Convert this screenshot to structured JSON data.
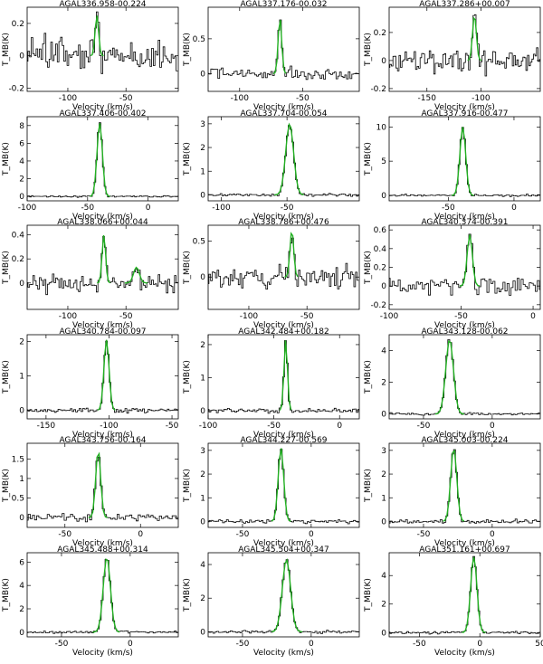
{
  "figure": {
    "xlabel": "Velocity (km/s)",
    "ylabel": "T_MB(K)",
    "colors": {
      "data": "#000000",
      "fit": "#22b022",
      "axes": "#000000"
    }
  },
  "chart_data": [
    {
      "type": "line",
      "title": "AGAL336.958-00.224",
      "xlim": [
        -135,
        -5
      ],
      "ylim": [
        -0.22,
        0.3
      ],
      "xticks": [
        -100,
        -50
      ],
      "yticks": [
        -0.2,
        0,
        0.2
      ],
      "peak_velocity": -75,
      "peak": 0.25,
      "width": 1.5,
      "noise": 0.08,
      "seed": 11
    },
    {
      "type": "line",
      "title": "AGAL337.176-00.032",
      "xlim": [
        -125,
        -5
      ],
      "ylim": [
        -0.25,
        0.95
      ],
      "xticks": [
        -100,
        -50
      ],
      "yticks": [
        0,
        0.5
      ],
      "peak_velocity": -68,
      "peak": 0.8,
      "width": 1.4,
      "noise": 0.07,
      "seed": 12
    },
    {
      "type": "line",
      "title": "AGAL337.286+00.007",
      "xlim": [
        -185,
        -45
      ],
      "ylim": [
        -0.22,
        0.38
      ],
      "xticks": [
        -150,
        -100
      ],
      "yticks": [
        -0.2,
        0,
        0.2
      ],
      "peak_velocity": -106,
      "peak": 0.32,
      "width": 1.8,
      "noise": 0.07,
      "seed": 13
    },
    {
      "type": "line",
      "title": "AGAL337.406-00.402",
      "xlim": [
        -100,
        25
      ],
      "ylim": [
        -0.5,
        9
      ],
      "xticks": [
        -100,
        -50,
        0
      ],
      "yticks": [
        0,
        2,
        4,
        6,
        8
      ],
      "peak_velocity": -40,
      "peak": 8.3,
      "width": 2.2,
      "noise": 0.07,
      "seed": 14
    },
    {
      "type": "line",
      "title": "AGAL337.704-00.054",
      "xlim": [
        -110,
        5
      ],
      "ylim": [
        -0.25,
        3.3
      ],
      "xticks": [
        -100,
        -50
      ],
      "yticks": [
        0,
        1,
        2,
        3
      ],
      "peak_velocity": -48,
      "peak": 3.0,
      "width": 3.0,
      "noise": 0.05,
      "seed": 15
    },
    {
      "type": "line",
      "title": "AGAL337.916-00.477",
      "xlim": [
        -95,
        20
      ],
      "ylim": [
        -0.8,
        11.5
      ],
      "xticks": [
        -50,
        0
      ],
      "yticks": [
        0,
        5,
        10
      ],
      "peak_velocity": -39,
      "peak": 10.0,
      "width": 2.2,
      "noise": 0.12,
      "seed": 16
    },
    {
      "type": "line",
      "title": "AGAL338.066+00.044",
      "xlim": [
        -135,
        -5
      ],
      "ylim": [
        -0.22,
        0.48
      ],
      "xticks": [
        -100,
        -50
      ],
      "yticks": [
        0,
        0.2,
        0.4
      ],
      "peak_velocity": -69,
      "peak": 0.4,
      "width": 1.5,
      "noise": 0.06,
      "seed": 17,
      "peak2_velocity": -41,
      "peak2": 0.13,
      "width2": 2.5
    },
    {
      "type": "line",
      "title": "AGAL338.786+00.476",
      "xlim": [
        -135,
        -5
      ],
      "ylim": [
        -0.45,
        0.72
      ],
      "xticks": [
        -100,
        -50
      ],
      "yticks": [
        0,
        0.5
      ],
      "peak_velocity": -63,
      "peak": 0.65,
      "width": 1.6,
      "noise": 0.12,
      "seed": 18
    },
    {
      "type": "line",
      "title": "AGAL340.374-00.391",
      "xlim": [
        -100,
        5
      ],
      "ylim": [
        -0.25,
        0.65
      ],
      "xticks": [
        -100,
        -50,
        0
      ],
      "yticks": [
        -0.2,
        0,
        0.2,
        0.4,
        0.6
      ],
      "peak_velocity": -44,
      "peak": 0.55,
      "width": 1.8,
      "noise": 0.08,
      "seed": 19
    },
    {
      "type": "line",
      "title": "AGAL340.784-00.097",
      "xlim": [
        -165,
        -45
      ],
      "ylim": [
        -0.25,
        2.2
      ],
      "xticks": [
        -150,
        -100,
        -50
      ],
      "yticks": [
        0,
        1,
        2
      ],
      "peak_velocity": -102,
      "peak": 2.05,
      "width": 2.0,
      "noise": 0.05,
      "seed": 20
    },
    {
      "type": "line",
      "title": "AGAL342.484+00.182",
      "xlim": [
        -100,
        15
      ],
      "ylim": [
        -0.25,
        2.3
      ],
      "xticks": [
        -100,
        -50,
        0
      ],
      "yticks": [
        0,
        1,
        2
      ],
      "peak_velocity": -41,
      "peak": 2.15,
      "width": 1.3,
      "noise": 0.05,
      "seed": 21
    },
    {
      "type": "line",
      "title": "AGAL343.128-00.062",
      "xlim": [
        -75,
        35
      ],
      "ylim": [
        -0.3,
        5.0
      ],
      "xticks": [
        -50,
        0
      ],
      "yticks": [
        0,
        2,
        4
      ],
      "peak_velocity": -31,
      "peak": 4.7,
      "width": 2.8,
      "noise": 0.06,
      "seed": 22
    },
    {
      "type": "line",
      "title": "AGAL343.756-00.164",
      "xlim": [
        -75,
        25
      ],
      "ylim": [
        -0.25,
        1.9
      ],
      "xticks": [
        -50,
        0
      ],
      "yticks": [
        0,
        0.5,
        1.0,
        1.5
      ],
      "peak_velocity": -28,
      "peak": 1.75,
      "width": 1.6,
      "noise": 0.08,
      "seed": 23
    },
    {
      "type": "line",
      "title": "AGAL344.227-00.569",
      "xlim": [
        -75,
        35
      ],
      "ylim": [
        -0.25,
        3.3
      ],
      "xticks": [
        -50,
        0
      ],
      "yticks": [
        0,
        1,
        2,
        3
      ],
      "peak_velocity": -22,
      "peak": 3.1,
      "width": 2.0,
      "noise": 0.06,
      "seed": 24
    },
    {
      "type": "line",
      "title": "AGAL345.003-00.224",
      "xlim": [
        -75,
        35
      ],
      "ylim": [
        -0.25,
        3.3
      ],
      "xticks": [
        -50,
        0
      ],
      "yticks": [
        0,
        1,
        2,
        3
      ],
      "peak_velocity": -28,
      "peak": 3.1,
      "width": 2.2,
      "noise": 0.06,
      "seed": 25
    },
    {
      "type": "line",
      "title": "AGAL345.488+00.314",
      "xlim": [
        -75,
        35
      ],
      "ylim": [
        -0.4,
        6.8
      ],
      "xticks": [
        -50,
        0
      ],
      "yticks": [
        0,
        2,
        4,
        6
      ],
      "peak_velocity": -17,
      "peak": 6.4,
      "width": 2.6,
      "noise": 0.07,
      "seed": 26
    },
    {
      "type": "line",
      "title": "AGAL345.504+00.347",
      "xlim": [
        -75,
        35
      ],
      "ylim": [
        -0.3,
        4.7
      ],
      "xticks": [
        -50,
        0
      ],
      "yticks": [
        0,
        2,
        4
      ],
      "peak_velocity": -18,
      "peak": 4.3,
      "width": 3.0,
      "noise": 0.07,
      "seed": 27
    },
    {
      "type": "line",
      "title": "AGAL351.161+00.697",
      "xlim": [
        -75,
        50
      ],
      "ylim": [
        -0.3,
        5.6
      ],
      "xticks": [
        -50,
        0,
        50
      ],
      "yticks": [
        0,
        2,
        4
      ],
      "peak_velocity": -5,
      "peak": 5.3,
      "width": 2.6,
      "noise": 0.07,
      "seed": 28
    }
  ]
}
